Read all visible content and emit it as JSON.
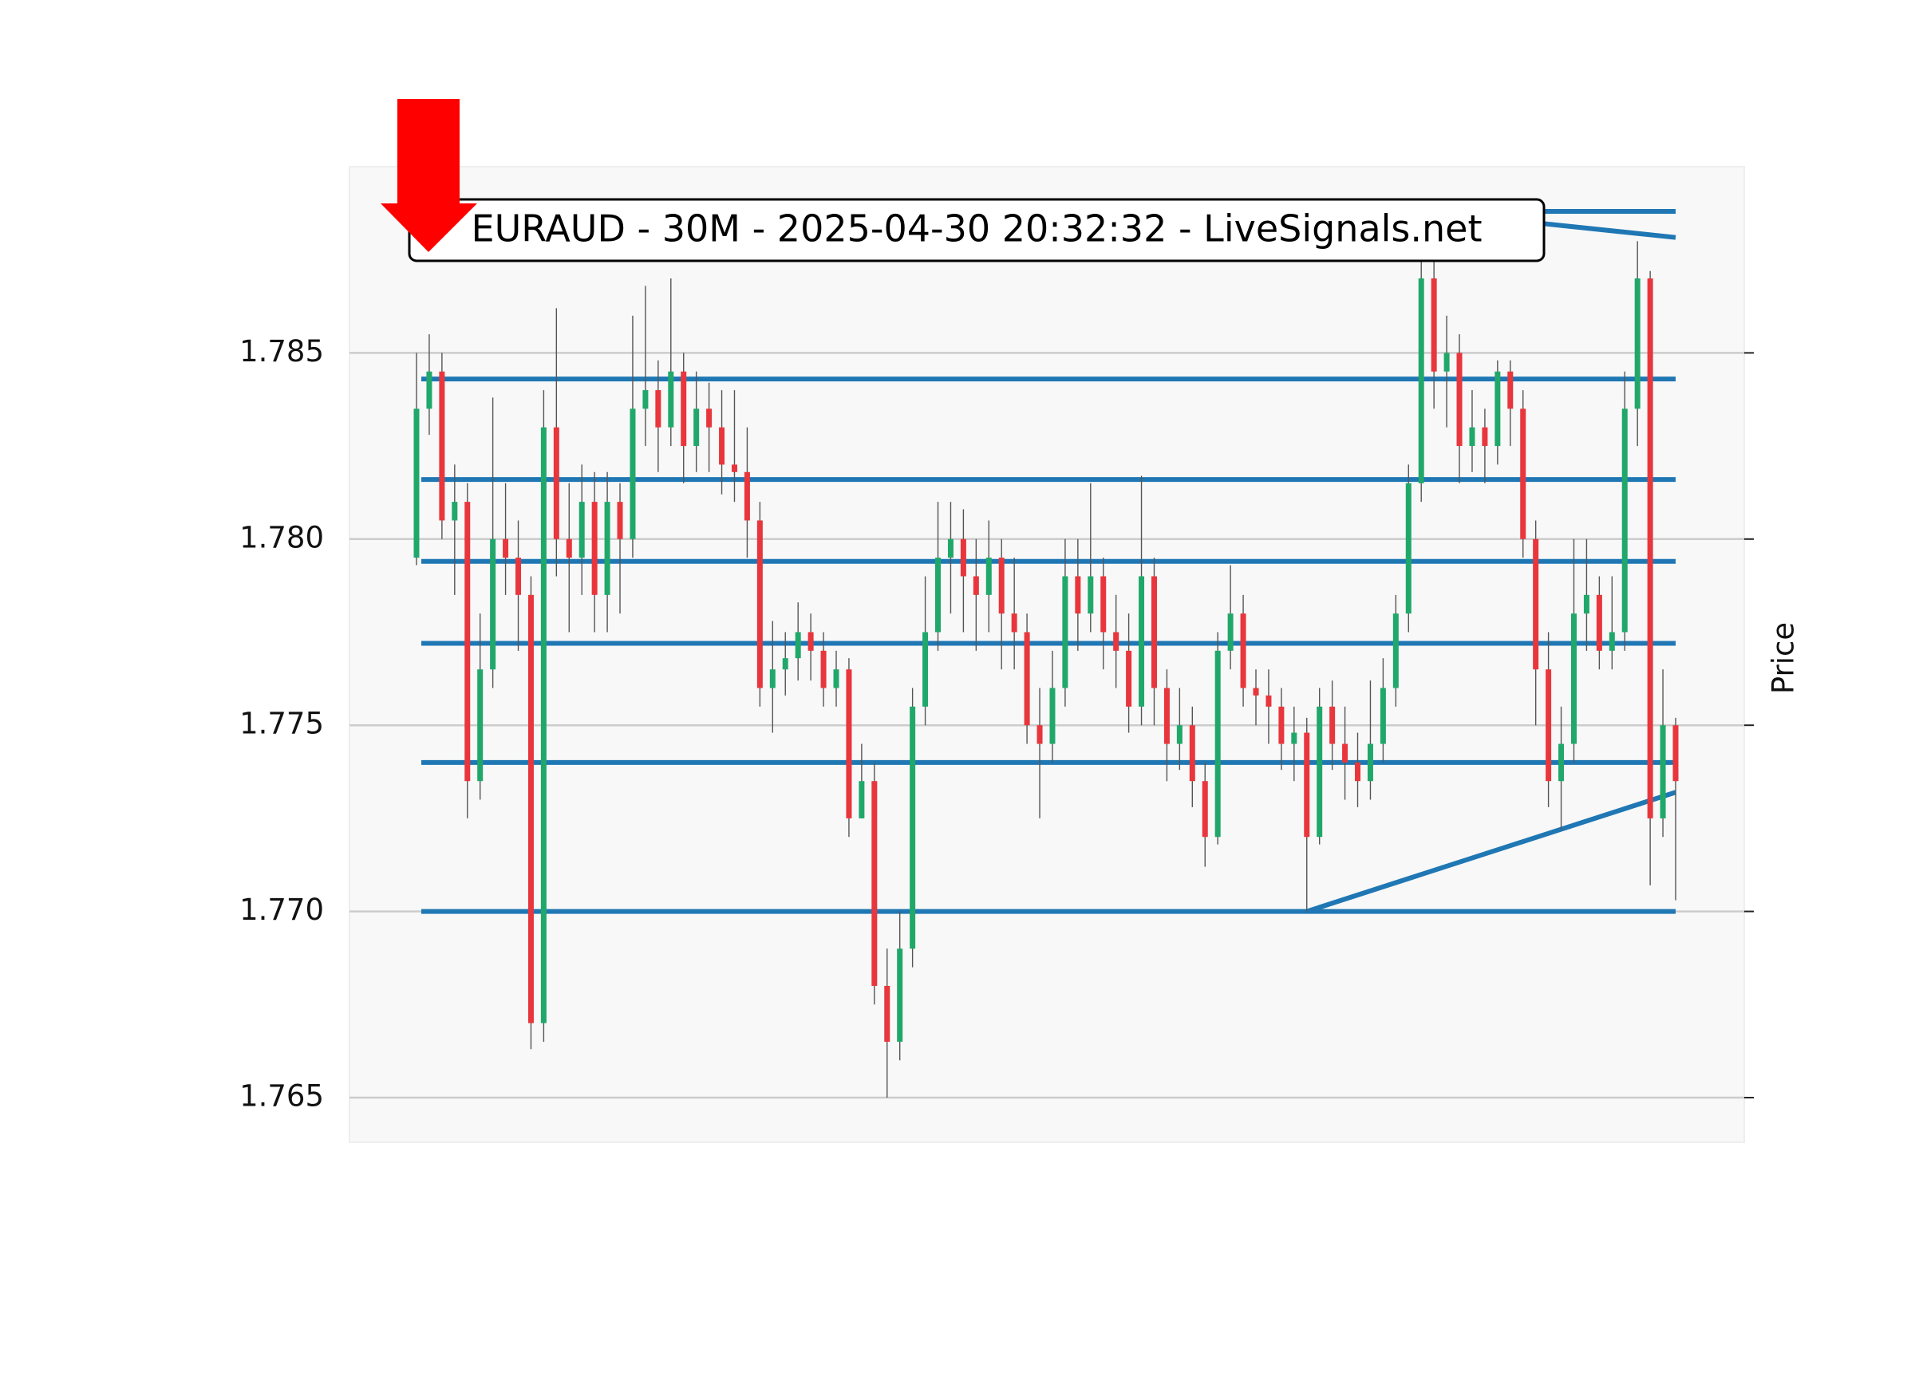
{
  "chart_data": {
    "type": "candlestick",
    "title": "EURAUD - 30M - 2025-04-30 20:32:32 - LiveSignals.net",
    "y_label": "Price",
    "ylim": [
      1.7638,
      1.79
    ],
    "yticks": [
      1.765,
      {
        "value": 1.77,
        "label": "1.770"
      },
      1.775,
      {
        "value": 1.78,
        "label": "1.780"
      },
      1.785
    ],
    "grid": true,
    "up_color": "#20a86b",
    "down_color": "#e8363c",
    "line_color": "#1f77b4",
    "open": [
      1.7795,
      1.7835,
      1.7845,
      1.7805,
      1.781,
      1.7735,
      1.7765,
      1.78,
      1.7795,
      1.7785,
      1.767,
      1.783,
      1.78,
      1.7795,
      1.781,
      1.7785,
      1.781,
      1.78,
      1.7835,
      1.784,
      1.783,
      1.7845,
      1.7825,
      1.7835,
      1.783,
      1.782,
      1.7818,
      1.7805,
      1.776,
      1.7765,
      1.7768,
      1.7775,
      1.777,
      1.776,
      1.7765,
      1.7725,
      1.7735,
      1.768,
      1.7665,
      1.769,
      1.7755,
      1.7775,
      1.7795,
      1.78,
      1.779,
      1.7785,
      1.7795,
      1.778,
      1.7775,
      1.775,
      1.7745,
      1.776,
      1.779,
      1.778,
      1.779,
      1.7775,
      1.777,
      1.7755,
      1.779,
      1.776,
      1.7745,
      1.775,
      1.7735,
      1.772,
      1.777,
      1.778,
      1.776,
      1.7758,
      1.7755,
      1.7745,
      1.7748,
      1.772,
      1.7755,
      1.7745,
      1.774,
      1.7735,
      1.7745,
      1.776,
      1.778,
      1.7815,
      1.787,
      1.7845,
      1.785,
      1.7825,
      1.783,
      1.7825,
      1.7845,
      1.7835,
      1.78,
      1.7765,
      1.7735,
      1.7745,
      1.778,
      1.7785,
      1.777,
      1.7775,
      1.7835,
      1.787,
      1.7725,
      1.775
    ],
    "high": [
      1.785,
      1.7855,
      1.785,
      1.782,
      1.7815,
      1.778,
      1.7838,
      1.7815,
      1.7805,
      1.779,
      1.784,
      1.7862,
      1.7815,
      1.782,
      1.7818,
      1.7818,
      1.7815,
      1.786,
      1.7868,
      1.7848,
      1.787,
      1.785,
      1.7845,
      1.7842,
      1.784,
      1.784,
      1.783,
      1.781,
      1.7778,
      1.7775,
      1.7783,
      1.778,
      1.7775,
      1.777,
      1.7768,
      1.7745,
      1.774,
      1.769,
      1.77,
      1.776,
      1.779,
      1.781,
      1.781,
      1.7808,
      1.78,
      1.7805,
      1.78,
      1.7795,
      1.778,
      1.776,
      1.777,
      1.78,
      1.78,
      1.7815,
      1.7795,
      1.7785,
      1.778,
      1.7817,
      1.7795,
      1.7765,
      1.776,
      1.7755,
      1.774,
      1.7775,
      1.7793,
      1.7785,
      1.7765,
      1.7765,
      1.776,
      1.7755,
      1.7752,
      1.776,
      1.7762,
      1.7755,
      1.7748,
      1.7762,
      1.7768,
      1.7785,
      1.782,
      1.788,
      1.7875,
      1.786,
      1.7855,
      1.784,
      1.7835,
      1.7848,
      1.7848,
      1.784,
      1.7805,
      1.7775,
      1.7755,
      1.78,
      1.78,
      1.779,
      1.779,
      1.7845,
      1.788,
      1.7872,
      1.7765,
      1.7752
    ],
    "low": [
      1.7793,
      1.7828,
      1.78,
      1.7785,
      1.7725,
      1.773,
      1.776,
      1.7785,
      1.777,
      1.7663,
      1.7665,
      1.779,
      1.7775,
      1.7785,
      1.7775,
      1.7775,
      1.778,
      1.7795,
      1.7825,
      1.7818,
      1.7825,
      1.7815,
      1.7818,
      1.7818,
      1.7812,
      1.781,
      1.7795,
      1.7755,
      1.7748,
      1.7758,
      1.7762,
      1.7762,
      1.7755,
      1.7755,
      1.772,
      1.7725,
      1.7675,
      1.765,
      1.766,
      1.7685,
      1.775,
      1.777,
      1.778,
      1.7775,
      1.777,
      1.7775,
      1.7765,
      1.7765,
      1.7745,
      1.7725,
      1.774,
      1.7755,
      1.777,
      1.7775,
      1.7765,
      1.776,
      1.7748,
      1.775,
      1.775,
      1.7735,
      1.7738,
      1.7728,
      1.7712,
      1.7718,
      1.7765,
      1.7755,
      1.775,
      1.7745,
      1.7738,
      1.7735,
      1.77,
      1.7718,
      1.7738,
      1.773,
      1.7728,
      1.773,
      1.774,
      1.7755,
      1.7775,
      1.781,
      1.7835,
      1.783,
      1.7815,
      1.7818,
      1.7815,
      1.782,
      1.7825,
      1.7795,
      1.775,
      1.7728,
      1.7722,
      1.774,
      1.777,
      1.7765,
      1.7765,
      1.777,
      1.7825,
      1.7707,
      1.772,
      1.7703
    ],
    "close": [
      1.7835,
      1.7845,
      1.7805,
      1.781,
      1.7735,
      1.7765,
      1.78,
      1.7795,
      1.7785,
      1.767,
      1.783,
      1.78,
      1.7795,
      1.781,
      1.7785,
      1.781,
      1.78,
      1.7835,
      1.784,
      1.783,
      1.7845,
      1.7825,
      1.7835,
      1.783,
      1.782,
      1.7818,
      1.7805,
      1.776,
      1.7765,
      1.7768,
      1.7775,
      1.777,
      1.776,
      1.7765,
      1.7725,
      1.7735,
      1.768,
      1.7665,
      1.769,
      1.7755,
      1.7775,
      1.7795,
      1.78,
      1.779,
      1.7785,
      1.7795,
      1.778,
      1.7775,
      1.775,
      1.7745,
      1.776,
      1.779,
      1.778,
      1.779,
      1.7775,
      1.777,
      1.7755,
      1.779,
      1.776,
      1.7745,
      1.775,
      1.7735,
      1.772,
      1.777,
      1.778,
      1.776,
      1.7758,
      1.7755,
      1.7745,
      1.7748,
      1.772,
      1.7755,
      1.7745,
      1.774,
      1.7735,
      1.7745,
      1.776,
      1.778,
      1.7815,
      1.787,
      1.7845,
      1.785,
      1.7825,
      1.783,
      1.7825,
      1.7845,
      1.7835,
      1.78,
      1.7765,
      1.7735,
      1.7745,
      1.778,
      1.7785,
      1.777,
      1.7775,
      1.7835,
      1.787,
      1.7725,
      1.775,
      1.7735
    ],
    "levels": [
      1.7843,
      1.7816,
      1.7794,
      1.7772,
      1.774,
      1.77
    ],
    "trendlines": [
      {
        "x": [
          70,
          99
        ],
        "y": [
          1.77,
          1.7732
        ]
      },
      {
        "x": [
          85,
          99
        ],
        "y": [
          1.7888,
          1.7888
        ]
      },
      {
        "x": [
          85,
          99
        ],
        "y": [
          1.7886,
          1.7881
        ]
      }
    ]
  }
}
